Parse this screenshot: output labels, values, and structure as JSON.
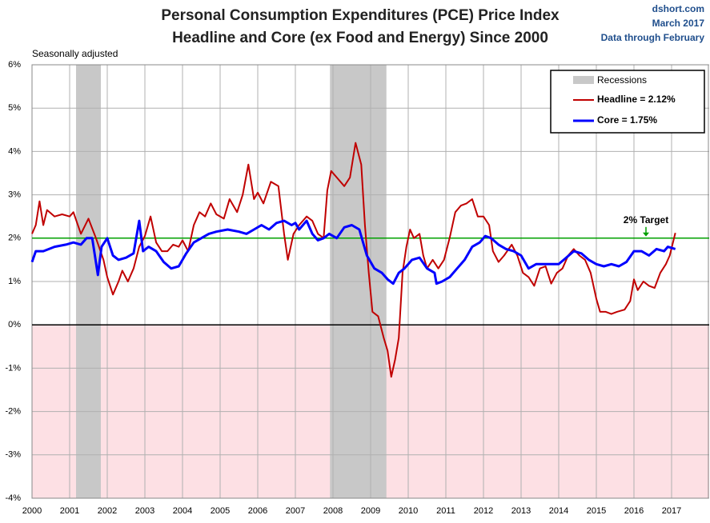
{
  "chart_data": {
    "type": "line",
    "title": "Personal Consumption Expenditures (PCE) Price Index",
    "subtitle": "Headline and Core (ex Food and Energy) Since 2000",
    "source": "dshort.com",
    "date": "March 2017",
    "data_note": "Data through February",
    "note": "Seasonally adjusted",
    "xlim": [
      2000,
      2018
    ],
    "xticks": [
      2000,
      2001,
      2002,
      2003,
      2004,
      2005,
      2006,
      2007,
      2008,
      2009,
      2010,
      2011,
      2012,
      2013,
      2014,
      2015,
      2016,
      2017
    ],
    "ylim": [
      -4,
      6
    ],
    "yticks": [
      {
        "value": -4,
        "label": "-4%"
      },
      {
        "value": -3,
        "label": "-3%"
      },
      {
        "value": -2,
        "label": "-2%"
      },
      {
        "value": -1,
        "label": "-1%"
      },
      {
        "value": 0,
        "label": "0%"
      },
      {
        "value": 1,
        "label": "1%"
      },
      {
        "value": 2,
        "label": "2%"
      },
      {
        "value": 3,
        "label": "3%"
      },
      {
        "value": 4,
        "label": "4%"
      },
      {
        "value": 5,
        "label": "5%"
      },
      {
        "value": 6,
        "label": "6%"
      }
    ],
    "grid": true,
    "recessions": {
      "name": "Recessions",
      "color": "#c8c8c8",
      "periods": [
        [
          2001.17,
          2001.83
        ],
        [
          2007.92,
          2009.42
        ]
      ]
    },
    "target": {
      "value": 2,
      "label": "2% Target",
      "color": "#00a000"
    },
    "legend": "top-right",
    "series": [
      {
        "name": "Headline = 2.12%",
        "color": "#c00000",
        "x": [
          2000.0,
          2000.1,
          2000.2,
          2000.3,
          2000.4,
          2000.6,
          2000.8,
          2001.0,
          2001.1,
          2001.3,
          2001.5,
          2001.7,
          2001.9,
          2002.0,
          2002.15,
          2002.3,
          2002.4,
          2002.55,
          2002.7,
          2002.85,
          2003.0,
          2003.15,
          2003.3,
          2003.45,
          2003.6,
          2003.75,
          2003.9,
          2004.0,
          2004.15,
          2004.3,
          2004.45,
          2004.6,
          2004.75,
          2004.9,
          2005.1,
          2005.25,
          2005.45,
          2005.6,
          2005.75,
          2005.9,
          2006.0,
          2006.15,
          2006.35,
          2006.55,
          2006.7,
          2006.8,
          2006.95,
          2007.1,
          2007.3,
          2007.45,
          2007.6,
          2007.75,
          2007.85,
          2007.95,
          2008.1,
          2008.3,
          2008.45,
          2008.6,
          2008.75,
          2008.85,
          2008.95,
          2009.05,
          2009.2,
          2009.35,
          2009.45,
          2009.55,
          2009.65,
          2009.75,
          2009.85,
          2009.95,
          2010.05,
          2010.15,
          2010.3,
          2010.4,
          2010.5,
          2010.65,
          2010.8,
          2010.95,
          2011.1,
          2011.25,
          2011.4,
          2011.55,
          2011.7,
          2011.85,
          2012.0,
          2012.15,
          2012.25,
          2012.4,
          2012.55,
          2012.75,
          2012.9,
          2013.05,
          2013.2,
          2013.35,
          2013.5,
          2013.65,
          2013.8,
          2013.95,
          2014.1,
          2014.25,
          2014.4,
          2014.55,
          2014.7,
          2014.85,
          2015.0,
          2015.1,
          2015.25,
          2015.4,
          2015.55,
          2015.75,
          2015.9,
          2016.0,
          2016.1,
          2016.25,
          2016.4,
          2016.55,
          2016.7,
          2016.85,
          2016.95,
          2017.1
        ],
        "values": [
          2.1,
          2.3,
          2.85,
          2.3,
          2.65,
          2.5,
          2.55,
          2.5,
          2.6,
          2.1,
          2.45,
          2.0,
          1.5,
          1.1,
          0.7,
          1.0,
          1.25,
          1.0,
          1.3,
          1.8,
          2.05,
          2.5,
          1.9,
          1.7,
          1.7,
          1.85,
          1.8,
          1.95,
          1.7,
          2.3,
          2.6,
          2.5,
          2.8,
          2.55,
          2.45,
          2.9,
          2.6,
          3.0,
          3.7,
          2.9,
          3.05,
          2.8,
          3.3,
          3.2,
          2.1,
          1.5,
          2.1,
          2.3,
          2.5,
          2.4,
          2.1,
          2.0,
          3.1,
          3.55,
          3.4,
          3.2,
          3.4,
          4.2,
          3.7,
          2.3,
          1.2,
          0.3,
          0.2,
          -0.3,
          -0.6,
          -1.2,
          -0.8,
          -0.3,
          1.2,
          1.8,
          2.2,
          2.0,
          2.1,
          1.6,
          1.3,
          1.5,
          1.3,
          1.5,
          2.0,
          2.6,
          2.75,
          2.8,
          2.9,
          2.5,
          2.5,
          2.3,
          1.7,
          1.45,
          1.6,
          1.85,
          1.6,
          1.2,
          1.1,
          0.9,
          1.3,
          1.35,
          0.95,
          1.2,
          1.3,
          1.6,
          1.75,
          1.6,
          1.5,
          1.2,
          0.6,
          0.3,
          0.3,
          0.25,
          0.3,
          0.35,
          0.55,
          1.05,
          0.8,
          1.0,
          0.9,
          0.85,
          1.2,
          1.4,
          1.6,
          2.12
        ]
      },
      {
        "name": "Core = 1.75%",
        "color": "#0000ff",
        "x": [
          2000.0,
          2000.1,
          2000.3,
          2000.6,
          2000.9,
          2001.1,
          2001.3,
          2001.45,
          2001.6,
          2001.75,
          2001.85,
          2002.0,
          2002.15,
          2002.3,
          2002.5,
          2002.7,
          2002.85,
          2002.95,
          2003.1,
          2003.3,
          2003.5,
          2003.7,
          2003.9,
          2004.1,
          2004.3,
          2004.5,
          2004.7,
          2004.9,
          2005.2,
          2005.5,
          2005.7,
          2005.9,
          2006.1,
          2006.3,
          2006.5,
          2006.7,
          2006.9,
          2007.0,
          2007.1,
          2007.3,
          2007.45,
          2007.6,
          2007.75,
          2007.9,
          2008.1,
          2008.3,
          2008.5,
          2008.7,
          2008.9,
          2009.1,
          2009.3,
          2009.45,
          2009.6,
          2009.75,
          2009.9,
          2010.1,
          2010.3,
          2010.5,
          2010.7,
          2010.75,
          2010.9,
          2011.1,
          2011.3,
          2011.5,
          2011.7,
          2011.9,
          2012.05,
          2012.2,
          2012.4,
          2012.6,
          2012.8,
          2013.0,
          2013.2,
          2013.4,
          2013.6,
          2013.8,
          2014.0,
          2014.2,
          2014.4,
          2014.6,
          2014.8,
          2015.0,
          2015.2,
          2015.4,
          2015.6,
          2015.8,
          2016.0,
          2016.2,
          2016.4,
          2016.6,
          2016.8,
          2016.9,
          2017.1
        ],
        "values": [
          1.45,
          1.7,
          1.7,
          1.8,
          1.85,
          1.9,
          1.85,
          2.0,
          2.0,
          1.15,
          1.8,
          2.0,
          1.6,
          1.5,
          1.55,
          1.65,
          2.4,
          1.7,
          1.8,
          1.7,
          1.45,
          1.3,
          1.35,
          1.65,
          1.9,
          2.0,
          2.1,
          2.15,
          2.2,
          2.15,
          2.1,
          2.2,
          2.3,
          2.2,
          2.35,
          2.4,
          2.3,
          2.35,
          2.2,
          2.4,
          2.1,
          1.95,
          2.0,
          2.1,
          2.0,
          2.25,
          2.3,
          2.2,
          1.6,
          1.3,
          1.2,
          1.05,
          0.95,
          1.2,
          1.3,
          1.5,
          1.55,
          1.3,
          1.2,
          0.95,
          1.0,
          1.1,
          1.3,
          1.5,
          1.8,
          1.9,
          2.05,
          2.0,
          1.85,
          1.75,
          1.7,
          1.6,
          1.3,
          1.4,
          1.4,
          1.4,
          1.4,
          1.55,
          1.7,
          1.65,
          1.5,
          1.4,
          1.35,
          1.4,
          1.35,
          1.45,
          1.7,
          1.7,
          1.6,
          1.75,
          1.7,
          1.8,
          1.75
        ]
      }
    ]
  }
}
